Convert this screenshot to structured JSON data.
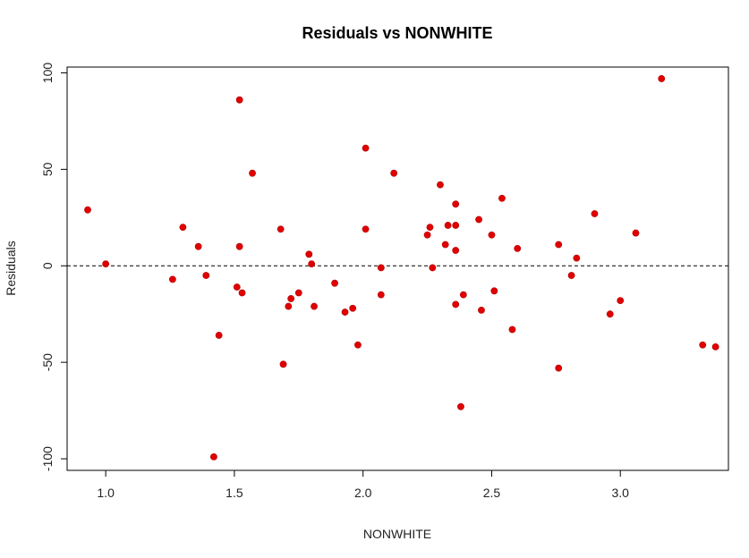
{
  "chart_data": {
    "type": "scatter",
    "title": "Residuals vs NONWHITE",
    "xlabel": "NONWHITE",
    "ylabel": "Residuals",
    "xlim": [
      0.85,
      3.42
    ],
    "ylim": [
      -106,
      103
    ],
    "x_ticks": [
      1.0,
      1.5,
      2.0,
      2.5,
      3.0
    ],
    "x_tick_labels": [
      "1.0",
      "1.5",
      "2.0",
      "2.5",
      "3.0"
    ],
    "y_ticks": [
      -100,
      -50,
      0,
      50,
      100
    ],
    "y_tick_labels": [
      "-100",
      "-50",
      "0",
      "50",
      "100"
    ],
    "reference_line": {
      "y": 0,
      "style": "dashed"
    },
    "grid": false,
    "point_color": "#e00000",
    "points": [
      {
        "x": 0.93,
        "y": 29
      },
      {
        "x": 1.0,
        "y": 1
      },
      {
        "x": 1.26,
        "y": -7
      },
      {
        "x": 1.3,
        "y": 20
      },
      {
        "x": 1.36,
        "y": 10
      },
      {
        "x": 1.39,
        "y": -5
      },
      {
        "x": 1.42,
        "y": -99
      },
      {
        "x": 1.44,
        "y": -36
      },
      {
        "x": 1.51,
        "y": -11
      },
      {
        "x": 1.52,
        "y": 86
      },
      {
        "x": 1.52,
        "y": 10
      },
      {
        "x": 1.53,
        "y": -14
      },
      {
        "x": 1.57,
        "y": 48
      },
      {
        "x": 1.68,
        "y": 19
      },
      {
        "x": 1.69,
        "y": -51
      },
      {
        "x": 1.71,
        "y": -21
      },
      {
        "x": 1.72,
        "y": -17
      },
      {
        "x": 1.75,
        "y": -14
      },
      {
        "x": 1.79,
        "y": 6
      },
      {
        "x": 1.8,
        "y": 1
      },
      {
        "x": 1.81,
        "y": -21
      },
      {
        "x": 1.89,
        "y": -9
      },
      {
        "x": 1.93,
        "y": -24
      },
      {
        "x": 1.96,
        "y": -22
      },
      {
        "x": 1.98,
        "y": -41
      },
      {
        "x": 2.01,
        "y": 61
      },
      {
        "x": 2.01,
        "y": 19
      },
      {
        "x": 2.07,
        "y": -1
      },
      {
        "x": 2.07,
        "y": -15
      },
      {
        "x": 2.12,
        "y": 48
      },
      {
        "x": 2.25,
        "y": 16
      },
      {
        "x": 2.26,
        "y": 20
      },
      {
        "x": 2.27,
        "y": -1
      },
      {
        "x": 2.3,
        "y": 42
      },
      {
        "x": 2.32,
        "y": 11
      },
      {
        "x": 2.33,
        "y": 21
      },
      {
        "x": 2.36,
        "y": 32
      },
      {
        "x": 2.36,
        "y": 21
      },
      {
        "x": 2.36,
        "y": 8
      },
      {
        "x": 2.36,
        "y": -20
      },
      {
        "x": 2.38,
        "y": -73
      },
      {
        "x": 2.39,
        "y": -15
      },
      {
        "x": 2.45,
        "y": 24
      },
      {
        "x": 2.46,
        "y": -23
      },
      {
        "x": 2.5,
        "y": 16
      },
      {
        "x": 2.51,
        "y": -13
      },
      {
        "x": 2.54,
        "y": 35
      },
      {
        "x": 2.58,
        "y": -33
      },
      {
        "x": 2.6,
        "y": 9
      },
      {
        "x": 2.76,
        "y": 11
      },
      {
        "x": 2.76,
        "y": -53
      },
      {
        "x": 2.81,
        "y": -5
      },
      {
        "x": 2.83,
        "y": 4
      },
      {
        "x": 2.9,
        "y": 27
      },
      {
        "x": 2.96,
        "y": -25
      },
      {
        "x": 3.0,
        "y": -18
      },
      {
        "x": 3.06,
        "y": 17
      },
      {
        "x": 3.16,
        "y": 97
      },
      {
        "x": 3.32,
        "y": -41
      },
      {
        "x": 3.37,
        "y": -42
      }
    ]
  }
}
